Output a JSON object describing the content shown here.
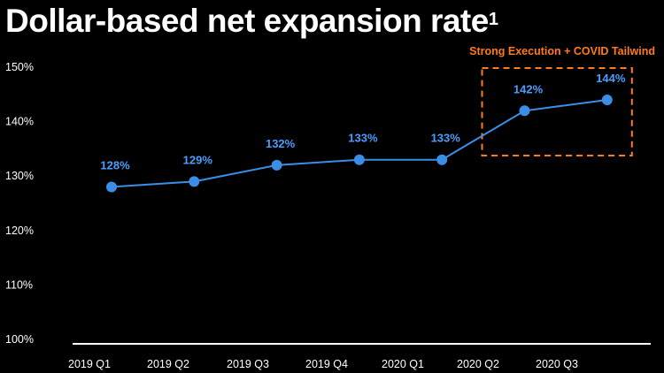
{
  "title": "Dollar-based net expansion rate",
  "title_footnote": "1",
  "colors": {
    "background": "#000000",
    "line": "#3a8ee6",
    "marker": "#3a8ee6",
    "data_label": "#4a9eff",
    "annotation": "#ff7a1a",
    "axis": "#ffffff"
  },
  "chart_data": {
    "type": "line",
    "title": "Dollar-based net expansion rate",
    "categories": [
      "2019 Q1",
      "2019 Q2",
      "2019 Q3",
      "2019 Q4",
      "2020 Q1",
      "2020 Q2",
      "2020 Q3"
    ],
    "series": [
      {
        "values": [
          128,
          129,
          132,
          133,
          133,
          142,
          144
        ]
      }
    ],
    "data_labels": [
      "128%",
      "129%",
      "132%",
      "133%",
      "133%",
      "142%",
      "144%"
    ],
    "y_ticks": [
      100,
      110,
      120,
      130,
      140,
      150
    ],
    "y_tick_labels": [
      "100%",
      "110%",
      "120%",
      "130%",
      "140%",
      "150%"
    ],
    "ylim": [
      100,
      150
    ],
    "grid": false,
    "annotation": {
      "text": "Strong Execution + COVID Tailwind",
      "highlighted_points": [
        "2020 Q2",
        "2020 Q3"
      ]
    }
  }
}
